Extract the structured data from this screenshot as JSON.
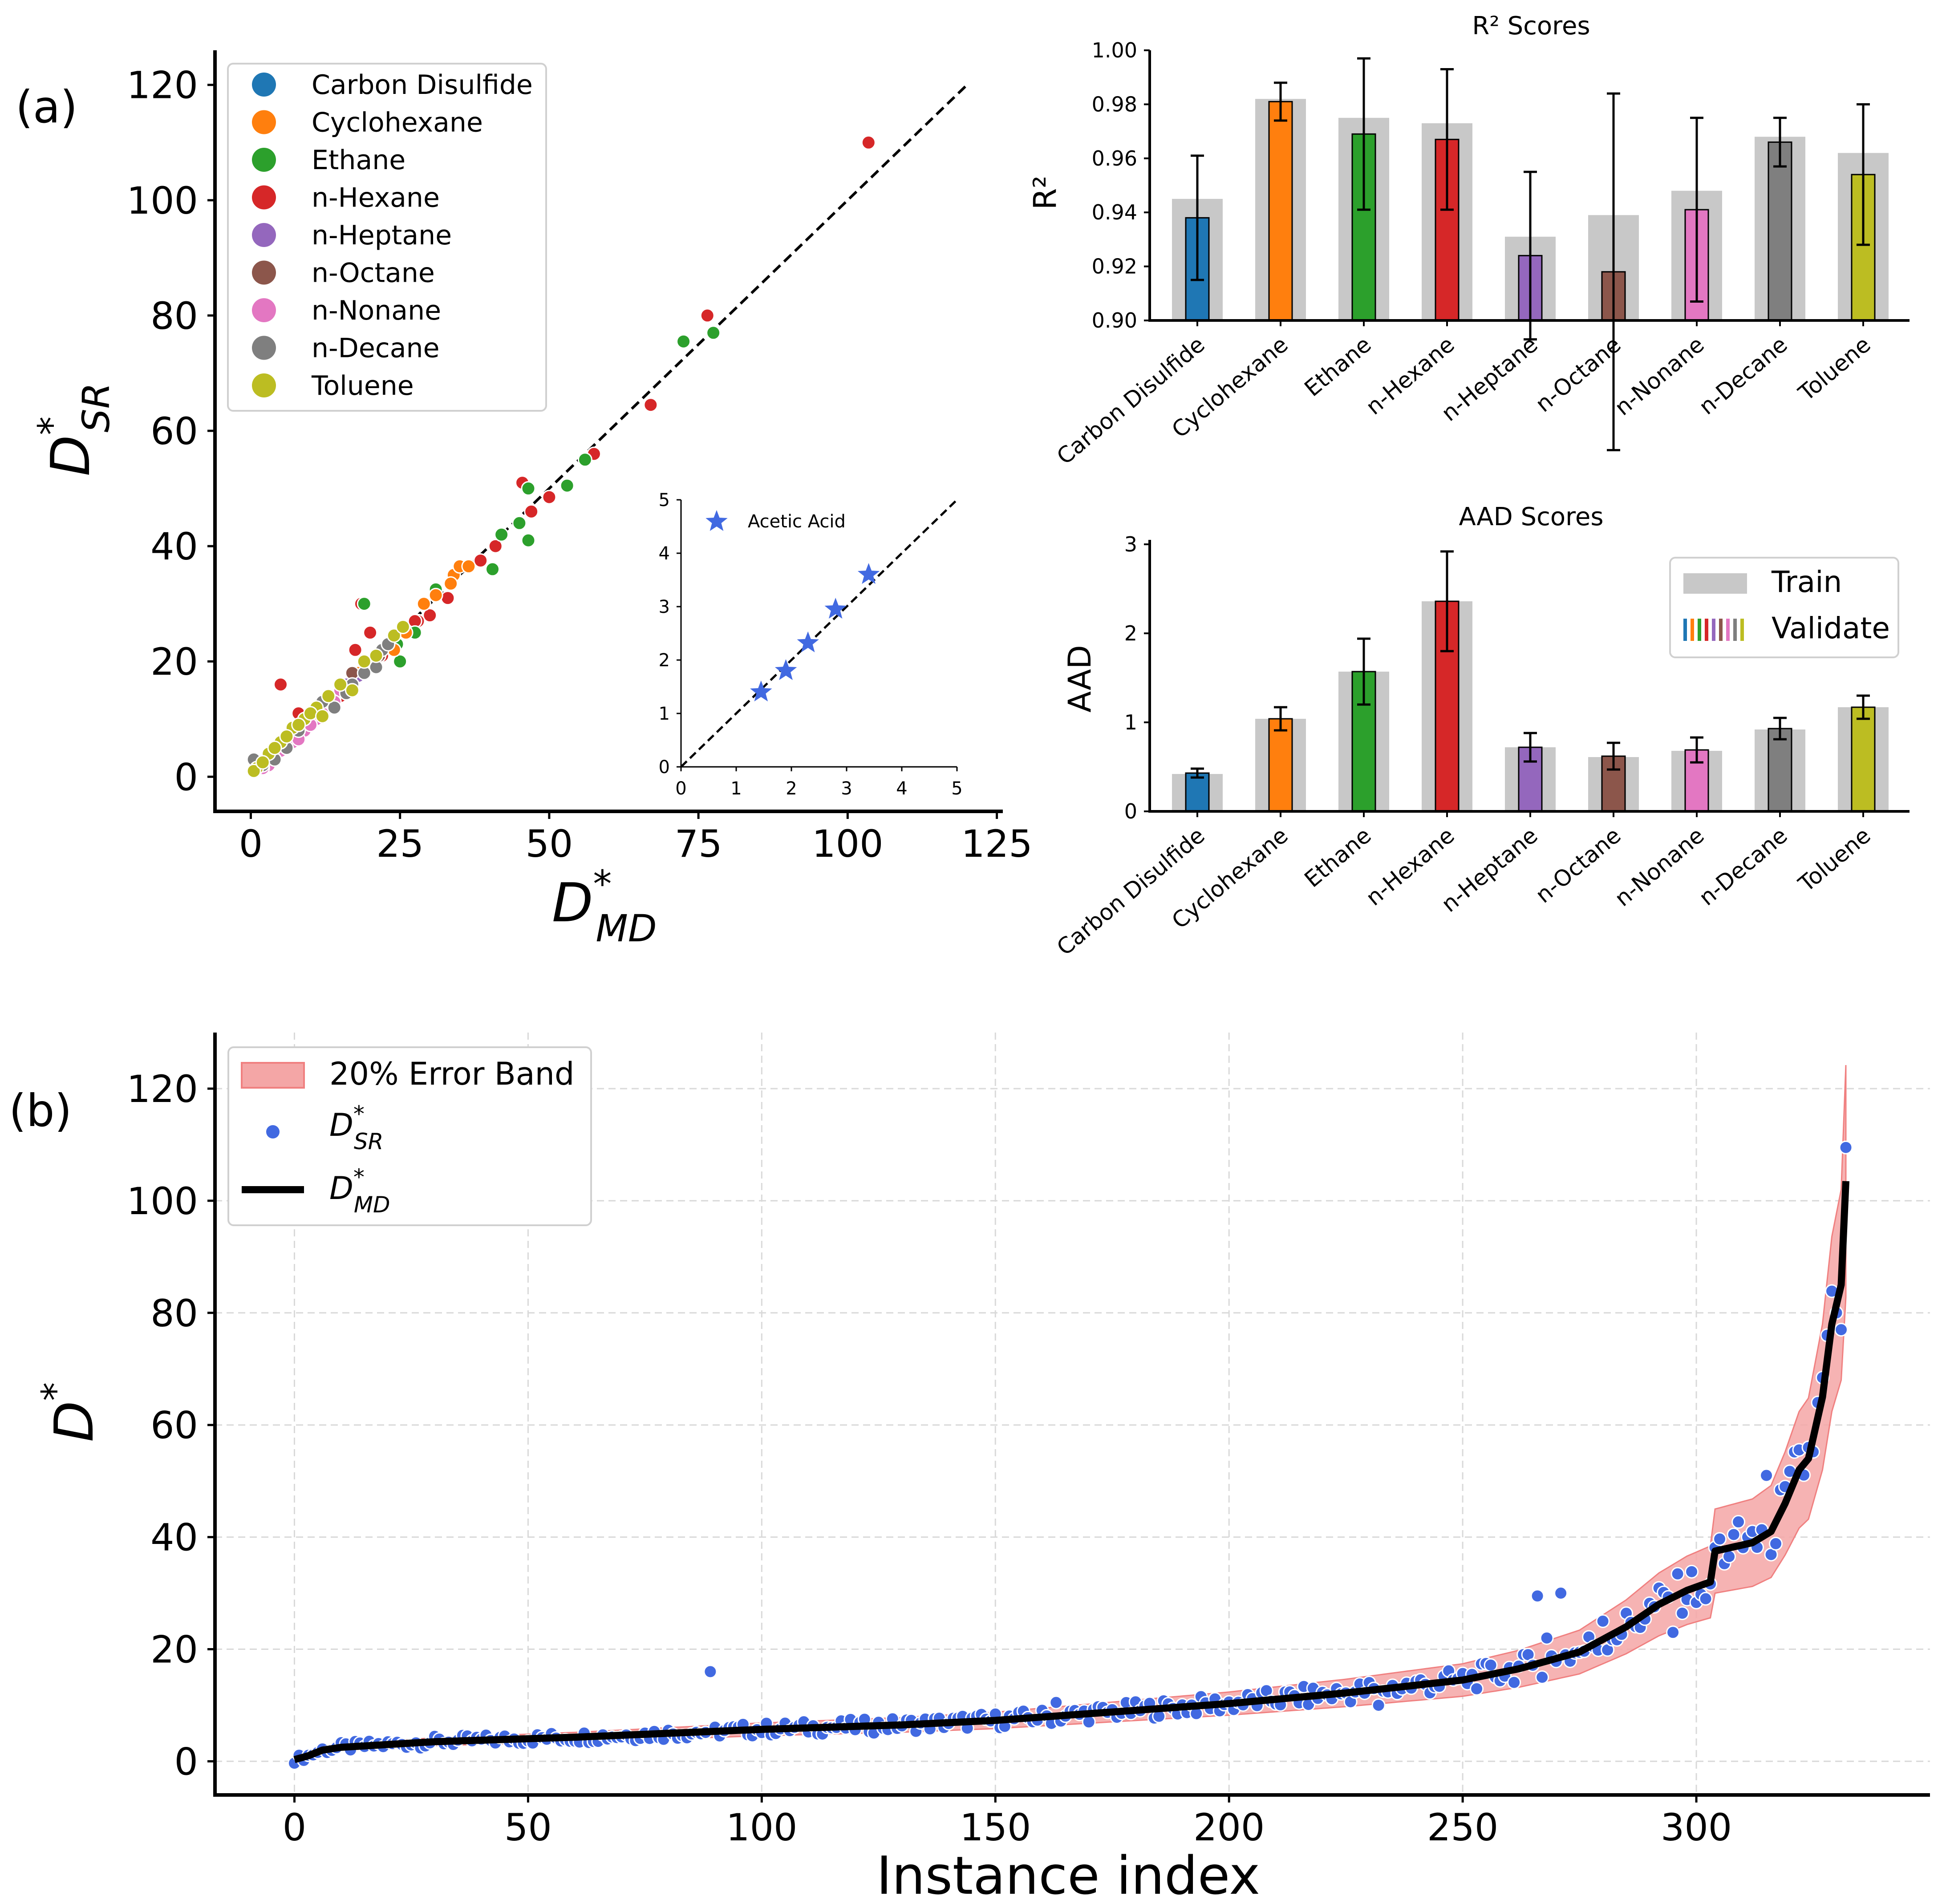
{
  "figure": {
    "panel_a_label": "(a)",
    "panel_b_label": "(b)"
  },
  "colors": {
    "Carbon Disulfide": "#1f77b4",
    "Cyclohexane": "#ff7f0e",
    "Ethane": "#2ca02c",
    "n-Hexane": "#d62728",
    "n-Heptane": "#9467bd",
    "n-Octane": "#8c564b",
    "n-Nonane": "#e377c2",
    "n-Decane": "#7f7f7f",
    "Toluene": "#bcbd22",
    "train_bar": "#c8c8c8",
    "acetic": "#4169e1",
    "band": "#f4a6a6",
    "sr_points": "#4169e1"
  },
  "chart_data": [
    {
      "id": "scatter",
      "type": "scatter",
      "title": "",
      "xlabel": "D*MD",
      "ylabel": "D*SR",
      "xlim": [
        -6,
        126
      ],
      "ylim": [
        -6,
        126
      ],
      "xticks": [
        0,
        25,
        50,
        75,
        100,
        125
      ],
      "yticks": [
        0,
        20,
        40,
        60,
        80,
        100,
        120
      ],
      "legend": [
        "Carbon Disulfide",
        "Cyclohexane",
        "Ethane",
        "n-Hexane",
        "n-Heptane",
        "n-Octane",
        "n-Nonane",
        "n-Decane",
        "Toluene"
      ],
      "legend_position": "upper-left",
      "diagonal": [
        0,
        120
      ],
      "points": {
        "n-Hexane": [
          [
            103.5,
            110
          ],
          [
            76.5,
            80
          ],
          [
            67,
            64.5
          ],
          [
            57.5,
            56
          ],
          [
            50,
            48.5
          ],
          [
            47,
            46
          ],
          [
            45.5,
            51
          ],
          [
            41,
            40
          ],
          [
            38.5,
            37.5
          ],
          [
            33,
            31
          ],
          [
            30,
            28
          ],
          [
            28,
            27
          ],
          [
            27.5,
            27
          ],
          [
            22,
            21
          ],
          [
            20,
            25
          ],
          [
            18.5,
            30
          ],
          [
            17.5,
            22
          ],
          [
            17,
            17
          ],
          [
            15,
            14
          ],
          [
            12,
            12
          ],
          [
            8,
            8
          ],
          [
            5,
            16
          ],
          [
            8,
            11
          ]
        ],
        "Ethane": [
          [
            77.5,
            77
          ],
          [
            72.5,
            75.5
          ],
          [
            46.5,
            50
          ],
          [
            46.5,
            41
          ],
          [
            45,
            44
          ],
          [
            53,
            50.5
          ],
          [
            56,
            55
          ],
          [
            42,
            42
          ],
          [
            40.5,
            36
          ],
          [
            31,
            32.5
          ],
          [
            25,
            20
          ],
          [
            24.5,
            23
          ],
          [
            27.5,
            25
          ],
          [
            19,
            30
          ],
          [
            13,
            13
          ],
          [
            16,
            15
          ],
          [
            10,
            9
          ],
          [
            6,
            5.5
          ]
        ],
        "Cyclohexane": [
          [
            34,
            35
          ],
          [
            35,
            36.5
          ],
          [
            36.5,
            36.5
          ],
          [
            33.5,
            33.5
          ],
          [
            31,
            31.5
          ],
          [
            29,
            30
          ],
          [
            26,
            25
          ],
          [
            24,
            22
          ],
          [
            20,
            20
          ],
          [
            18,
            18
          ],
          [
            14,
            14
          ],
          [
            12,
            13
          ],
          [
            10,
            11
          ],
          [
            7,
            7
          ],
          [
            5,
            6
          ],
          [
            3,
            3
          ]
        ],
        "Carbon Disulfide": [
          [
            3,
            3.5
          ],
          [
            4.5,
            4.5
          ],
          [
            5.5,
            5
          ],
          [
            6.5,
            6
          ],
          [
            2,
            2.5
          ],
          [
            8,
            7.5
          ]
        ],
        "n-Heptane": [
          [
            12,
            12
          ],
          [
            14,
            13
          ],
          [
            16,
            16
          ],
          [
            9,
            9
          ],
          [
            7,
            6.5
          ],
          [
            10,
            10
          ],
          [
            18,
            17.5
          ],
          [
            6,
            7
          ],
          [
            4,
            4
          ]
        ],
        "n-Octane": [
          [
            20,
            20
          ],
          [
            21.5,
            21
          ],
          [
            17,
            18
          ],
          [
            15,
            15
          ],
          [
            11,
            11
          ],
          [
            13,
            12
          ]
        ],
        "n-Nonane": [
          [
            15,
            15
          ],
          [
            13,
            12.5
          ],
          [
            11,
            10
          ],
          [
            9,
            8
          ],
          [
            7,
            6
          ],
          [
            5,
            4.5
          ],
          [
            3,
            2
          ],
          [
            2,
            1.5
          ],
          [
            4,
            3
          ],
          [
            6,
            5
          ],
          [
            8,
            6.5
          ],
          [
            10,
            9
          ],
          [
            12,
            11
          ],
          [
            14,
            13
          ]
        ],
        "n-Decane": [
          [
            22,
            22
          ],
          [
            23,
            23
          ],
          [
            21,
            19
          ],
          [
            19,
            18
          ],
          [
            17,
            16
          ],
          [
            16,
            14.5
          ],
          [
            14,
            12
          ],
          [
            12,
            13
          ],
          [
            10,
            11
          ],
          [
            8,
            8
          ],
          [
            6,
            5
          ],
          [
            4,
            3
          ],
          [
            2,
            2
          ],
          [
            0.5,
            3
          ]
        ],
        "Toluene": [
          [
            24,
            24.5
          ],
          [
            25.5,
            26
          ],
          [
            21,
            21
          ],
          [
            19,
            20
          ],
          [
            17,
            15
          ],
          [
            15,
            16
          ],
          [
            13,
            14
          ],
          [
            11,
            12
          ],
          [
            9,
            10
          ],
          [
            7,
            8.5
          ],
          [
            5,
            6
          ],
          [
            3,
            4
          ],
          [
            1,
            1.5
          ],
          [
            0.5,
            1
          ],
          [
            6,
            7
          ],
          [
            4,
            5
          ],
          [
            8,
            9
          ],
          [
            2,
            2.5
          ],
          [
            10,
            11
          ],
          [
            12,
            10.5
          ]
        ]
      }
    },
    {
      "id": "inset",
      "type": "scatter",
      "title": "",
      "xlim": [
        0,
        5
      ],
      "ylim": [
        0,
        5
      ],
      "xticks": [
        0,
        1,
        2,
        3,
        4,
        5
      ],
      "yticks": [
        0,
        1,
        2,
        3,
        4,
        5
      ],
      "legend": [
        "Acetic Acid"
      ],
      "points": [
        [
          1.45,
          1.4
        ],
        [
          1.9,
          1.8
        ],
        [
          2.3,
          2.32
        ],
        [
          2.8,
          2.95
        ],
        [
          3.4,
          3.6
        ]
      ]
    },
    {
      "id": "r2",
      "type": "bar",
      "title": "R² Scores",
      "ylabel": "R²",
      "ylim": [
        0.9,
        1.0
      ],
      "yticks": [
        "0.90",
        "0.92",
        "0.94",
        "0.96",
        "0.98",
        "1.00"
      ],
      "categories": [
        "Carbon Disulfide",
        "Cyclohexane",
        "Ethane",
        "n-Hexane",
        "n-Heptane",
        "n-Octane",
        "n-Nonane",
        "n-Decane",
        "Toluene"
      ],
      "series": [
        {
          "name": "Train",
          "values": [
            0.945,
            0.982,
            0.975,
            0.973,
            0.931,
            0.939,
            0.948,
            0.968,
            0.962
          ]
        },
        {
          "name": "Validate",
          "values": [
            0.938,
            0.981,
            0.969,
            0.967,
            0.924,
            0.918,
            0.941,
            0.966,
            0.954
          ],
          "errors": [
            0.023,
            0.007,
            0.028,
            0.026,
            0.031,
            0.066,
            0.034,
            0.009,
            0.026
          ]
        }
      ]
    },
    {
      "id": "aad",
      "type": "bar",
      "title": "AAD Scores",
      "ylabel": "AAD",
      "ylim": [
        0,
        3.05
      ],
      "yticks": [
        "0",
        "1",
        "2",
        "3"
      ],
      "legend": [
        "Train",
        "Validate"
      ],
      "legend_position": "upper-right",
      "categories": [
        "Carbon Disulfide",
        "Cyclohexane",
        "Ethane",
        "n-Hexane",
        "n-Heptane",
        "n-Octane",
        "n-Nonane",
        "n-Decane",
        "Toluene"
      ],
      "series": [
        {
          "name": "Train",
          "values": [
            0.42,
            1.04,
            1.57,
            2.36,
            0.72,
            0.61,
            0.68,
            0.92,
            1.17
          ]
        },
        {
          "name": "Validate",
          "values": [
            0.43,
            1.04,
            1.57,
            2.36,
            0.72,
            0.62,
            0.69,
            0.93,
            1.17
          ],
          "errors": [
            0.05,
            0.13,
            0.37,
            0.56,
            0.16,
            0.15,
            0.14,
            0.12,
            0.13
          ]
        }
      ]
    },
    {
      "id": "instance",
      "type": "line",
      "title": "",
      "xlabel": "Instance index",
      "ylabel": "D*",
      "xlim": [
        -17,
        350
      ],
      "ylim": [
        -6,
        130
      ],
      "xticks": [
        0,
        50,
        100,
        150,
        200,
        250,
        300
      ],
      "yticks": [
        0,
        20,
        40,
        60,
        80,
        100,
        120
      ],
      "grid": true,
      "legend": [
        "20% Error Band",
        "D*SR",
        "D*MD"
      ],
      "legend_position": "upper-left",
      "series": [
        {
          "name": "D*MD",
          "knots": [
            [
              0,
              0.3
            ],
            [
              3,
              1
            ],
            [
              6,
              2
            ],
            [
              10,
              2.5
            ],
            [
              30,
              3.5
            ],
            [
              60,
              4.3
            ],
            [
              100,
              5.7
            ],
            [
              130,
              6.5
            ],
            [
              150,
              7.3
            ],
            [
              175,
              8.8
            ],
            [
              200,
              10.3
            ],
            [
              225,
              12.2
            ],
            [
              250,
              14.5
            ],
            [
              262,
              16.5
            ],
            [
              275,
              19.5
            ],
            [
              285,
              24
            ],
            [
              292,
              28
            ],
            [
              298,
              30.5
            ],
            [
              303,
              32
            ],
            [
              304,
              37.5
            ],
            [
              312,
              39
            ],
            [
              316,
              41
            ],
            [
              319,
              46
            ],
            [
              322,
              52
            ],
            [
              324,
              54
            ],
            [
              327,
              65
            ],
            [
              329,
              78
            ],
            [
              331,
              85
            ],
            [
              332,
              103.5
            ]
          ]
        },
        {
          "name": "20% Error Band",
          "relative_error": 0.2
        },
        {
          "name": "D*SR",
          "outliers": [
            [
              89,
              16
            ],
            [
              266,
              29.5
            ],
            [
              271,
              30
            ],
            [
              163,
              10.5
            ],
            [
              232,
              10
            ],
            [
              332,
              109.5
            ],
            [
              330,
              80
            ],
            [
              331,
              77
            ],
            [
              328,
              76
            ],
            [
              326,
              64
            ],
            [
              324,
              56
            ],
            [
              315,
              51
            ],
            [
              319,
              49
            ],
            [
              312,
              41
            ],
            [
              302,
              29
            ],
            [
              295,
              23
            ],
            [
              280,
              25
            ],
            [
              268,
              22
            ],
            [
              267,
              15
            ]
          ]
        }
      ]
    }
  ],
  "labels": {
    "scatter_xlabel_main": "D",
    "scatter_xlabel_sup": "*",
    "scatter_xlabel_sub": "MD",
    "scatter_ylabel_main": "D",
    "scatter_ylabel_sup": "*",
    "scatter_ylabel_sub": "SR",
    "inset_legend": "Acetic Acid",
    "r2_title": "R² Scores",
    "r2_ylabel": "R²",
    "aad_title": "AAD Scores",
    "aad_ylabel": "AAD",
    "legend_train": "Train",
    "legend_validate": "Validate",
    "band_label": "20% Error Band",
    "sr_main": "D",
    "sr_sup": "*",
    "sr_sub": "SR",
    "md_main": "D",
    "md_sup": "*",
    "md_sub": "MD",
    "b_xlabel": "Instance index",
    "b_ylabel_main": "D",
    "b_ylabel_sup": "*"
  }
}
